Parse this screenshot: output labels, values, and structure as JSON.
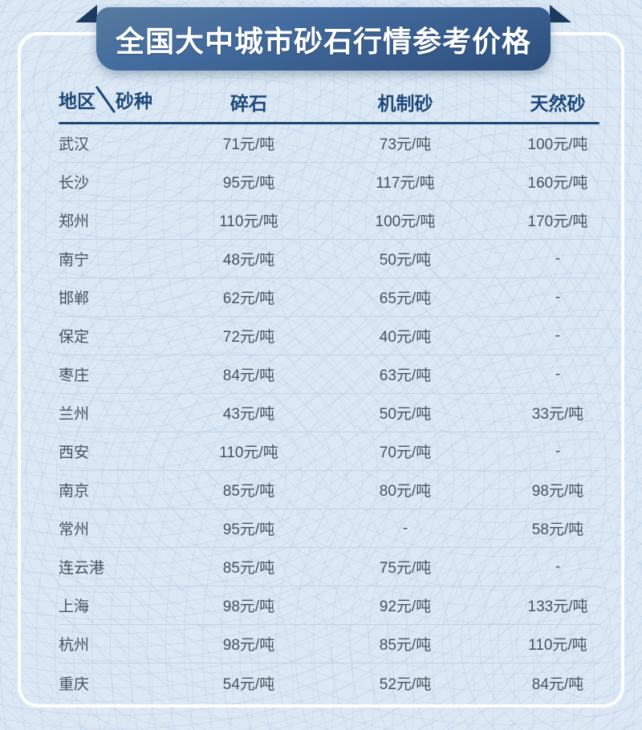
{
  "banner": {
    "title": "全国大中城市砂石行情参考价格"
  },
  "colors": {
    "banner_gradient_top": "#577b9f",
    "banner_gradient_bottom": "#2c4e7d",
    "ribbon_fold": "#1d3b60",
    "header_text": "#1d4878",
    "header_rule": "#1d4878",
    "row_divider": "#c3d2e2",
    "body_text": "#47545f",
    "page_background": "#dce8f4",
    "card_outline": "#ffffff"
  },
  "table": {
    "corner": {
      "region_label": "地区",
      "type_label": "砂种"
    },
    "columns": [
      "碎石",
      "机制砂",
      "天然砂"
    ],
    "rows": [
      {
        "city": "武汉",
        "values": [
          "71元/吨",
          "73元/吨",
          "100元/吨"
        ]
      },
      {
        "city": "长沙",
        "values": [
          "95元/吨",
          "117元/吨",
          "160元/吨"
        ]
      },
      {
        "city": "郑州",
        "values": [
          "110元/吨",
          "100元/吨",
          "170元/吨"
        ]
      },
      {
        "city": "南宁",
        "values": [
          "48元/吨",
          "50元/吨",
          "-"
        ]
      },
      {
        "city": "邯郸",
        "values": [
          "62元/吨",
          "65元/吨",
          "-"
        ]
      },
      {
        "city": "保定",
        "values": [
          "72元/吨",
          "40元/吨",
          "-"
        ]
      },
      {
        "city": "枣庄",
        "values": [
          "84元/吨",
          "63元/吨",
          "-"
        ]
      },
      {
        "city": "兰州",
        "values": [
          "43元/吨",
          "50元/吨",
          "33元/吨"
        ]
      },
      {
        "city": "西安",
        "values": [
          "110元/吨",
          "70元/吨",
          "-"
        ]
      },
      {
        "city": "南京",
        "values": [
          "85元/吨",
          "80元/吨",
          "98元/吨"
        ]
      },
      {
        "city": "常州",
        "values": [
          "95元/吨",
          "-",
          "58元/吨"
        ]
      },
      {
        "city": "连云港",
        "values": [
          "85元/吨",
          "75元/吨",
          "-"
        ]
      },
      {
        "city": "上海",
        "values": [
          "98元/吨",
          "92元/吨",
          "133元/吨"
        ]
      },
      {
        "city": "杭州",
        "values": [
          "98元/吨",
          "85元/吨",
          "110元/吨"
        ]
      },
      {
        "city": "重庆",
        "values": [
          "54元/吨",
          "52元/吨",
          "84元/吨"
        ]
      }
    ]
  },
  "chart_data": {
    "type": "table",
    "title": "全国大中城市砂石行情参考价格",
    "columns": [
      "地区",
      "碎石",
      "机制砂",
      "天然砂"
    ],
    "unit": "元/吨",
    "missing_value_marker": "-",
    "rows": [
      [
        "武汉",
        71,
        73,
        100
      ],
      [
        "长沙",
        95,
        117,
        160
      ],
      [
        "郑州",
        110,
        100,
        170
      ],
      [
        "南宁",
        48,
        50,
        null
      ],
      [
        "邯郸",
        62,
        65,
        null
      ],
      [
        "保定",
        72,
        40,
        null
      ],
      [
        "枣庄",
        84,
        63,
        null
      ],
      [
        "兰州",
        43,
        50,
        33
      ],
      [
        "西安",
        110,
        70,
        null
      ],
      [
        "南京",
        85,
        80,
        98
      ],
      [
        "常州",
        95,
        null,
        58
      ],
      [
        "连云港",
        85,
        75,
        null
      ],
      [
        "上海",
        98,
        92,
        133
      ],
      [
        "杭州",
        98,
        85,
        110
      ],
      [
        "重庆",
        54,
        52,
        84
      ]
    ]
  }
}
